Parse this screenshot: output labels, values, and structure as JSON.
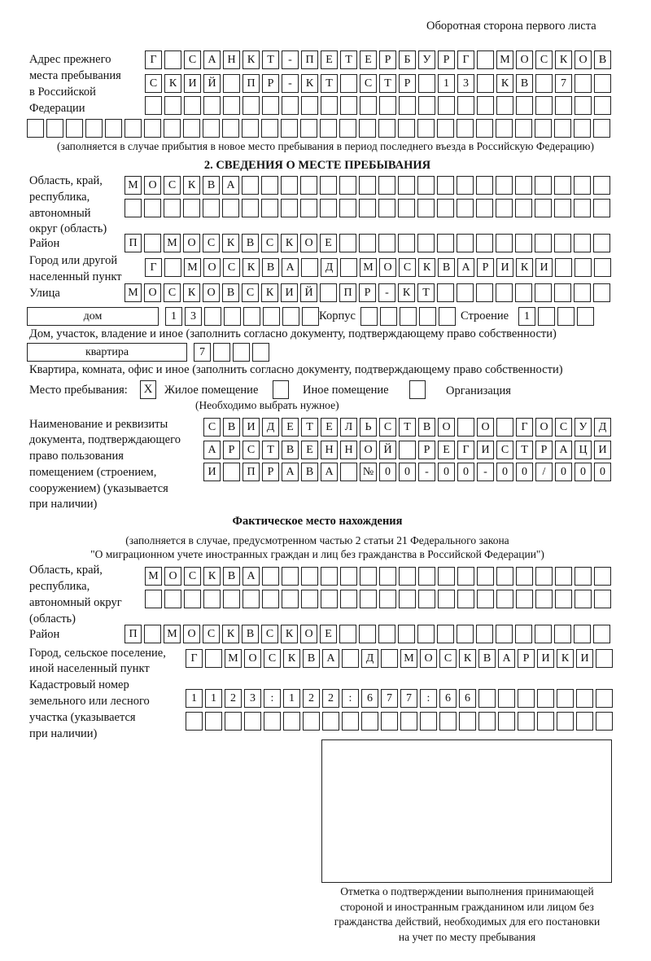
{
  "header": "Оборотная сторона первого листа",
  "prev_address": {
    "label": [
      "Адрес прежнего",
      "места пребывания",
      "в Российской",
      "Федерации"
    ],
    "rows": [
      [
        "Г",
        "",
        "С",
        "А",
        "Н",
        "К",
        "Т",
        "-",
        "П",
        "Е",
        "Т",
        "Е",
        "Р",
        "Б",
        "У",
        "Р",
        "Г",
        "",
        "М",
        "О",
        "С",
        "К",
        "О",
        "В"
      ],
      [
        "С",
        "К",
        "И",
        "Й",
        "",
        "П",
        "Р",
        "-",
        "К",
        "Т",
        "",
        "С",
        "Т",
        "Р",
        "",
        "1",
        "3",
        "",
        "К",
        "В",
        "",
        "7",
        "",
        ""
      ],
      [
        "",
        "",
        "",
        "",
        "",
        "",
        "",
        "",
        "",
        "",
        "",
        "",
        "",
        "",
        "",
        "",
        "",
        "",
        "",
        "",
        "",
        "",
        "",
        ""
      ],
      [
        "",
        "",
        "",
        "",
        "",
        "",
        "",
        "",
        "",
        "",
        "",
        "",
        "",
        "",
        "",
        "",
        "",
        "",
        "",
        "",
        "",
        "",
        "",
        "",
        "",
        "",
        "",
        "",
        "",
        ""
      ]
    ],
    "note": "(заполняется в случае прибытия в новое место пребывания в период последнего въезда в Российскую Федерацию)"
  },
  "section2": {
    "title": "2. СВЕДЕНИЯ О МЕСТЕ ПРЕБЫВАНИЯ",
    "oblast_label": [
      "Область, край,",
      "республика,",
      "автономный",
      "округ (область)"
    ],
    "oblast_rows": [
      [
        "М",
        "О",
        "С",
        "К",
        "В",
        "А",
        "",
        "",
        "",
        "",
        "",
        "",
        "",
        "",
        "",
        "",
        "",
        "",
        "",
        "",
        "",
        "",
        "",
        "",
        ""
      ],
      [
        "",
        "",
        "",
        "",
        "",
        "",
        "",
        "",
        "",
        "",
        "",
        "",
        "",
        "",
        "",
        "",
        "",
        "",
        "",
        "",
        "",
        "",
        "",
        "",
        ""
      ]
    ],
    "raion_label": "Район",
    "raion": [
      "П",
      "",
      "М",
      "О",
      "С",
      "К",
      "В",
      "С",
      "К",
      "О",
      "Е",
      "",
      "",
      "",
      "",
      "",
      "",
      "",
      "",
      "",
      "",
      "",
      "",
      "",
      ""
    ],
    "gorod_label": [
      "Город или другой",
      "населенный пункт"
    ],
    "gorod": [
      "Г",
      "",
      "М",
      "О",
      "С",
      "К",
      "В",
      "А",
      "",
      "Д",
      "",
      "М",
      "О",
      "С",
      "К",
      "В",
      "А",
      "Р",
      "И",
      "К",
      "И",
      "",
      "",
      ""
    ],
    "ulitsa_label": "Улица",
    "ulitsa": [
      "М",
      "О",
      "С",
      "К",
      "О",
      "В",
      "С",
      "К",
      "И",
      "Й",
      "",
      "П",
      "Р",
      "-",
      "К",
      "Т",
      "",
      "",
      "",
      "",
      "",
      "",
      "",
      "",
      ""
    ],
    "dom_type": "дом",
    "dom": [
      "1",
      "3",
      "",
      "",
      "",
      "",
      "",
      ""
    ],
    "korpus_label": "Корпус",
    "korpus": [
      "",
      "",
      "",
      "",
      ""
    ],
    "stroenie_label": "Строение",
    "stroenie": [
      "1",
      "",
      "",
      ""
    ],
    "dom_note": "Дом, участок, владение и иное (заполнить согласно документу, подтверждающему право собственности)",
    "kv_type": "квартира",
    "kv": [
      "7",
      "",
      "",
      ""
    ],
    "kv_note": "Квартира, комната, офис и иное (заполнить согласно документу, подтверждающему право собственности)",
    "mesto_label": "Место пребывания:",
    "options": [
      {
        "label": "Жилое помещение",
        "mark": "X"
      },
      {
        "label": "Иное помещение",
        "mark": ""
      },
      {
        "label": "Организация",
        "mark": ""
      }
    ],
    "mesto_note": "(Необходимо выбрать нужное)",
    "doc_label": [
      "Наименование и реквизиты",
      "документа, подтверждающего",
      "право пользования",
      "помещением (строением,",
      "сооружением) (указывается",
      "при наличии)"
    ],
    "doc_rows": [
      [
        "С",
        "В",
        "И",
        "Д",
        "Е",
        "Т",
        "Е",
        "Л",
        "Ь",
        "С",
        "Т",
        "В",
        "О",
        "",
        "О",
        "",
        "Г",
        "О",
        "С",
        "У",
        "Д"
      ],
      [
        "А",
        "Р",
        "С",
        "Т",
        "В",
        "Е",
        "Н",
        "Н",
        "О",
        "Й",
        "",
        "Р",
        "Е",
        "Г",
        "И",
        "С",
        "Т",
        "Р",
        "А",
        "Ц",
        "И"
      ],
      [
        "И",
        "",
        "П",
        "Р",
        "А",
        "В",
        "А",
        "",
        "№",
        "0",
        "0",
        "-",
        "0",
        "0",
        "-",
        "0",
        "0",
        "/",
        "0",
        "0",
        "0"
      ]
    ]
  },
  "actual": {
    "title": "Фактическое место нахождения",
    "note": [
      "(заполняется в случае, предусмотренном частью 2 статьи 21 Федерального закона",
      "\"О миграционном учете иностранных граждан и лиц без гражданства в Российской Федерации\")"
    ],
    "oblast_label": [
      "Область, край,",
      "республика,",
      "автономный округ",
      "(область)"
    ],
    "oblast_rows": [
      [
        "М",
        "О",
        "С",
        "К",
        "В",
        "А",
        "",
        "",
        "",
        "",
        "",
        "",
        "",
        "",
        "",
        "",
        "",
        "",
        "",
        "",
        "",
        "",
        "",
        ""
      ],
      [
        "",
        "",
        "",
        "",
        "",
        "",
        "",
        "",
        "",
        "",
        "",
        "",
        "",
        "",
        "",
        "",
        "",
        "",
        "",
        "",
        "",
        "",
        "",
        ""
      ]
    ],
    "raion_label": "Район",
    "raion": [
      "П",
      "",
      "М",
      "О",
      "С",
      "К",
      "В",
      "С",
      "К",
      "О",
      "Е",
      "",
      "",
      "",
      "",
      "",
      "",
      "",
      "",
      "",
      "",
      "",
      "",
      "",
      ""
    ],
    "gorod_label": [
      "Город, сельское поселение,",
      "иной населенный пункт"
    ],
    "gorod": [
      "Г",
      "",
      "М",
      "О",
      "С",
      "К",
      "В",
      "А",
      "",
      "Д",
      "",
      "М",
      "О",
      "С",
      "К",
      "В",
      "А",
      "Р",
      "И",
      "К",
      "И",
      ""
    ],
    "cad_label": [
      "Кадастровый номер",
      "земельного или лесного",
      "участка (указывается",
      "при наличии)"
    ],
    "cad_rows": [
      [
        "1",
        "1",
        "2",
        "3",
        ":",
        "1",
        "2",
        "2",
        ":",
        "6",
        "7",
        "7",
        ":",
        "6",
        "6",
        "",
        "",
        "",
        "",
        "",
        "",
        ""
      ],
      [
        "",
        "",
        "",
        "",
        "",
        "",
        "",
        "",
        "",
        "",
        "",
        "",
        "",
        "",
        "",
        "",
        "",
        "",
        "",
        "",
        "",
        ""
      ]
    ]
  },
  "stamp_caption": [
    "Отметка о подтверждении выполнения принимающей",
    "стороной и иностранным гражданином или лицом без",
    "гражданства действий, необходимых для его постановки",
    "на учет по месту пребывания"
  ]
}
